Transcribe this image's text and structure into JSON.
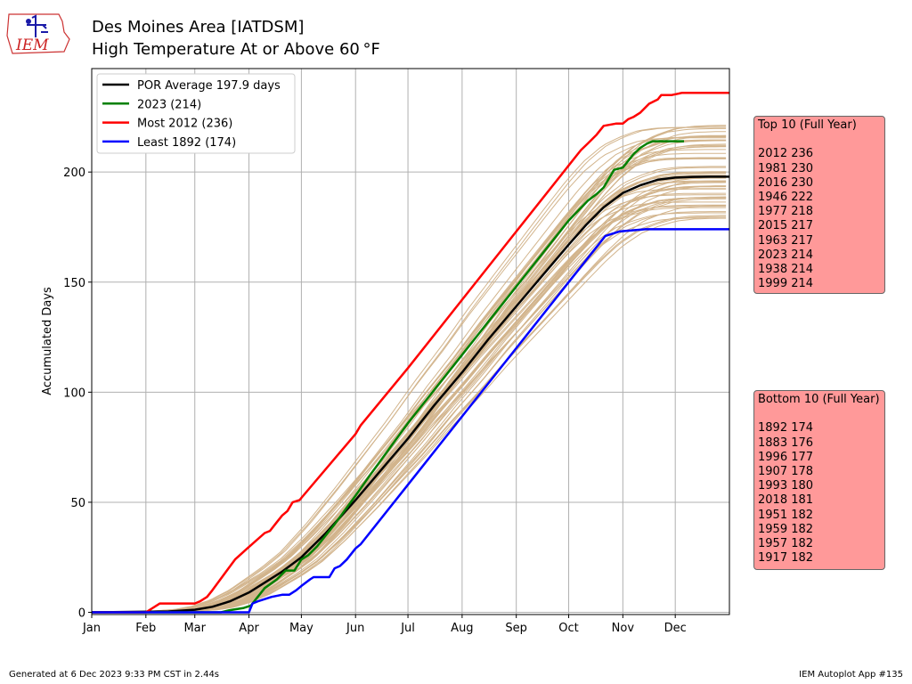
{
  "header": {
    "line1": "Des Moines Area [IATDSM]",
    "line2": "High Temperature At or Above 60 °F",
    "logo_text": "IEM"
  },
  "top10": {
    "title": "Top 10 (Full Year)",
    "entries": [
      "2012 236",
      "1981 230",
      "2016 230",
      "1946 222",
      "1977 218",
      "2015 217",
      "1963 217",
      "2023 214",
      "1938 214",
      "1999 214"
    ]
  },
  "bottom10": {
    "title": "Bottom 10 (Full Year)",
    "entries": [
      "1892 174",
      "1883 176",
      "1996 177",
      "1907 178",
      "1993 180",
      "2018 181",
      "1951 182",
      "1959 182",
      "1957 182",
      "1917 182"
    ]
  },
  "footer": {
    "generated": "Generated at 6 Dec 2023 9:33 PM CST in 2.44s",
    "app": "IEM Autoplot App #135"
  },
  "chart_data": {
    "type": "line",
    "ylabel": "Accumulated Days",
    "xlabel": "",
    "x_unit": "day_of_year",
    "x_tick_labels": [
      "Jan",
      "Feb",
      "Mar",
      "Apr",
      "May",
      "Jun",
      "Jul",
      "Aug",
      "Sep",
      "Oct",
      "Nov",
      "Dec"
    ],
    "x_tick_days": [
      1,
      32,
      60,
      91,
      121,
      152,
      182,
      213,
      244,
      274,
      305,
      335
    ],
    "xlim": [
      1,
      366
    ],
    "y_ticks": [
      0,
      50,
      100,
      150,
      200
    ],
    "ylim": [
      -1,
      247
    ],
    "grid": true,
    "legend_position": "top-left",
    "background_traces_color": "#d2b48c",
    "series": [
      {
        "name": "POR Average 197.9 days",
        "color": "#000000",
        "x": [
          1,
          45,
          60,
          70,
          80,
          91,
          100,
          110,
          121,
          135,
          152,
          167,
          182,
          197,
          213,
          228,
          244,
          259,
          274,
          284,
          294,
          305,
          315,
          325,
          335,
          345,
          355,
          366
        ],
        "y": [
          0,
          0.4,
          1.2,
          2.5,
          5,
          9,
          13.5,
          18.5,
          25,
          36,
          51,
          65,
          79,
          94,
          109,
          124,
          139,
          153,
          167,
          176,
          184,
          190.5,
          194,
          196.5,
          197.5,
          197.8,
          197.9,
          197.9
        ]
      },
      {
        "name": "2023 (214)",
        "color": "#008000",
        "x": [
          1,
          75,
          80,
          88,
          92,
          97,
          100,
          107,
          112,
          117,
          121,
          125,
          130,
          135,
          140,
          152,
          160,
          182,
          213,
          244,
          274,
          285,
          290,
          294,
          297,
          300,
          305,
          308,
          311,
          315,
          319,
          322,
          333,
          340
        ],
        "y": [
          0,
          0,
          1,
          2,
          3,
          8,
          11,
          15,
          19,
          19,
          24,
          26,
          30,
          35,
          40,
          53,
          62,
          86,
          117,
          148,
          178,
          187,
          190,
          193,
          197,
          201,
          202,
          205,
          208,
          211,
          213,
          214,
          214,
          214
        ]
      },
      {
        "name": "Most 2012 (236)",
        "color": "#ff0000",
        "x": [
          1,
          32,
          40,
          60,
          63,
          67,
          70,
          83,
          90,
          100,
          103,
          107,
          110,
          113,
          116,
          120,
          121,
          152,
          155,
          182,
          213,
          244,
          274,
          278,
          281,
          285,
          290,
          294,
          301,
          305,
          308,
          311,
          315,
          320,
          325,
          327,
          333,
          339,
          344,
          366
        ],
        "y": [
          0,
          0,
          4,
          4,
          5,
          7,
          10,
          24,
          29,
          36,
          37,
          41,
          44,
          46,
          50,
          51,
          52,
          81,
          85,
          111,
          142,
          173,
          203,
          207,
          210,
          213,
          217,
          221,
          222,
          222,
          224,
          225,
          227,
          231,
          233,
          235,
          235,
          236,
          236,
          236
        ]
      },
      {
        "name": "Least 1892 (174)",
        "color": "#0000ff",
        "x": [
          1,
          91,
          93,
          96,
          100,
          104,
          110,
          114,
          118,
          121,
          126,
          128,
          133,
          137,
          140,
          143,
          147,
          152,
          155,
          182,
          213,
          244,
          274,
          289,
          295,
          303,
          318,
          335,
          366
        ],
        "y": [
          0,
          0,
          4,
          5,
          6,
          7,
          8,
          8,
          10,
          12,
          15,
          16,
          16,
          16,
          20,
          21,
          24,
          29,
          31,
          58,
          89,
          120,
          150,
          165,
          171,
          173,
          174,
          174,
          174
        ]
      }
    ]
  }
}
